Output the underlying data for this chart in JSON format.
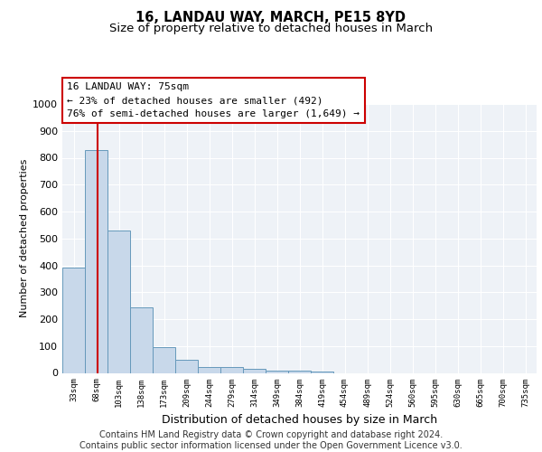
{
  "title_line1": "16, LANDAU WAY, MARCH, PE15 8YD",
  "title_line2": "Size of property relative to detached houses in March",
  "xlabel": "Distribution of detached houses by size in March",
  "ylabel": "Number of detached properties",
  "categories": [
    "33sqm",
    "68sqm",
    "103sqm",
    "138sqm",
    "173sqm",
    "209sqm",
    "244sqm",
    "279sqm",
    "314sqm",
    "349sqm",
    "384sqm",
    "419sqm",
    "454sqm",
    "489sqm",
    "524sqm",
    "560sqm",
    "595sqm",
    "630sqm",
    "665sqm",
    "700sqm",
    "735sqm"
  ],
  "values": [
    390,
    830,
    530,
    243,
    95,
    50,
    22,
    22,
    15,
    10,
    10,
    5,
    0,
    0,
    0,
    0,
    0,
    0,
    0,
    0,
    0
  ],
  "bar_color": "#c8d8ea",
  "bar_edge_color": "#6699bb",
  "bar_width": 1.0,
  "vline_x": 1.05,
  "vline_color": "#cc0000",
  "ylim": [
    0,
    1000
  ],
  "yticks": [
    0,
    100,
    200,
    300,
    400,
    500,
    600,
    700,
    800,
    900,
    1000
  ],
  "annotation_box_text": "16 LANDAU WAY: 75sqm\n← 23% of detached houses are smaller (492)\n76% of semi-detached houses are larger (1,649) →",
  "annotation_box_color": "#cc0000",
  "background_color": "#eef2f7",
  "grid_color": "#ffffff",
  "footer_line1": "Contains HM Land Registry data © Crown copyright and database right 2024.",
  "footer_line2": "Contains public sector information licensed under the Open Government Licence v3.0.",
  "title_fontsize": 10.5,
  "subtitle_fontsize": 9.5,
  "annotation_fontsize": 8,
  "footer_fontsize": 7,
  "ylabel_fontsize": 8,
  "xlabel_fontsize": 9
}
